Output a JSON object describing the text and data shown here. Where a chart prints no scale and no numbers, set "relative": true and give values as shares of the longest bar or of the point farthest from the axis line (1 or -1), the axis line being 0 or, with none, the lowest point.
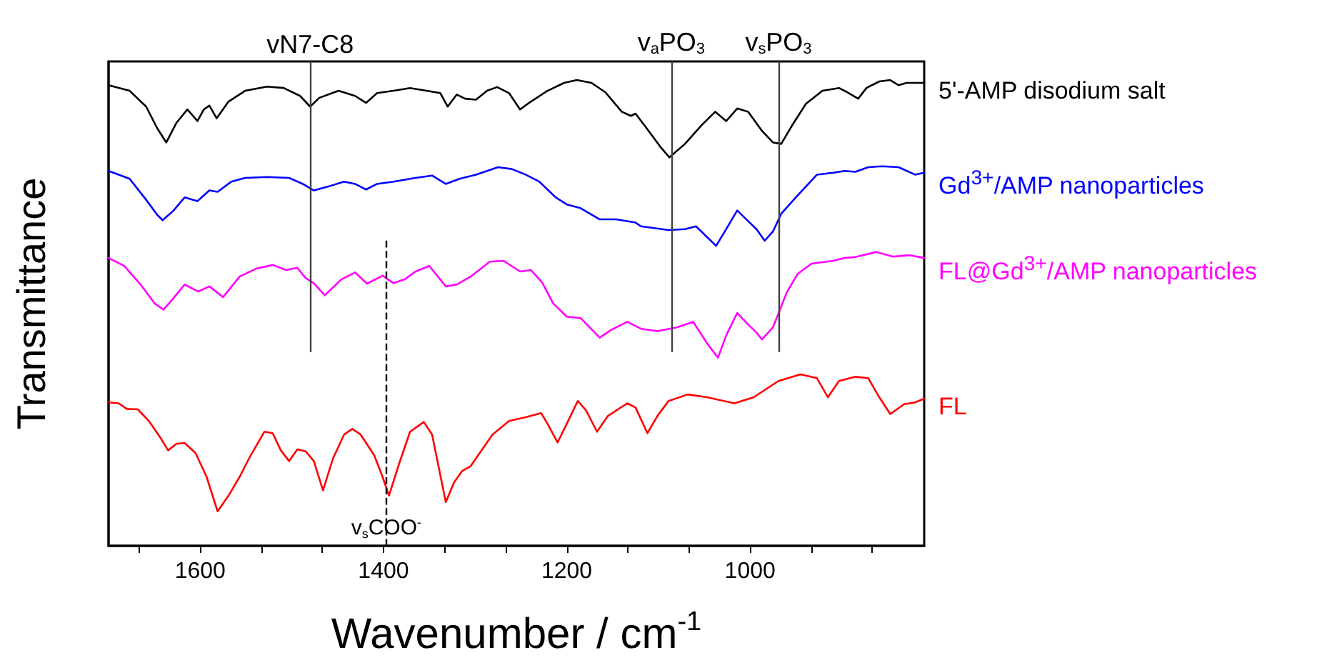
{
  "chart_data": {
    "type": "line",
    "relative": true,
    "xlabel": "Wavenumber / cm$^{-1}$",
    "ylabel": "Transmittance",
    "marker": "none",
    "xlim": [
      1700,
      810
    ],
    "xticks": [
      {
        "value": 1666.67,
        "label": null
      },
      1600,
      {
        "value": 1533.33,
        "label": null
      },
      {
        "value": 1466.67,
        "label": null
      },
      1400,
      {
        "value": 1333.33,
        "label": null
      },
      {
        "value": 1266.67,
        "label": null
      },
      1200,
      {
        "value": 1133.33,
        "label": null
      },
      {
        "value": 1066.67,
        "label": null
      },
      1000,
      {
        "value": 933.33,
        "label": null
      },
      {
        "value": 866.67,
        "label": null
      }
    ],
    "series": [
      {
        "name": "5'-AMP disodium salt",
        "color": "#000000",
        "x": [
          1700,
          1677,
          1659,
          1647,
          1637,
          1626,
          1614,
          1603,
          1596,
          1590,
          1582,
          1569,
          1551,
          1527,
          1509,
          1491,
          1480,
          1470,
          1449,
          1431,
          1419,
          1407,
          1389,
          1371,
          1353,
          1338,
          1330,
          1320,
          1311,
          1299,
          1287,
          1276,
          1263,
          1251,
          1239,
          1221,
          1203,
          1189,
          1173,
          1158,
          1140,
          1130,
          1125,
          1113,
          1098,
          1088,
          1071,
          1053,
          1038,
          1026,
          1014,
          1002,
          987,
          975,
          966,
          954,
          939,
          921,
          903,
          894,
          882,
          873,
          859,
          847,
          838,
          829,
          810
        ],
        "values": [
          0.989,
          0.977,
          0.943,
          0.897,
          0.866,
          0.908,
          0.937,
          0.912,
          0.937,
          0.945,
          0.918,
          0.954,
          0.977,
          0.986,
          0.983,
          0.966,
          0.943,
          0.962,
          0.977,
          0.966,
          0.951,
          0.972,
          0.977,
          0.983,
          0.977,
          0.972,
          0.943,
          0.969,
          0.96,
          0.958,
          0.977,
          0.985,
          0.972,
          0.937,
          0.954,
          0.977,
          0.994,
          1,
          0.994,
          0.974,
          0.932,
          0.923,
          0.928,
          0.897,
          0.857,
          0.834,
          0.863,
          0.903,
          0.932,
          0.912,
          0.939,
          0.932,
          0.891,
          0.866,
          0.863,
          0.903,
          0.949,
          0.977,
          0.983,
          0.974,
          0.96,
          0.983,
          0.997,
          1,
          0.989,
          0.994,
          0.994
        ]
      },
      {
        "name": "Gd$^{3+}$/AMP nanoparticles",
        "color": "#0000ff",
        "x": [
          1700,
          1677,
          1659,
          1647,
          1641,
          1629,
          1617,
          1603,
          1590,
          1581,
          1566,
          1551,
          1527,
          1503,
          1488,
          1476,
          1461,
          1443,
          1431,
          1419,
          1407,
          1389,
          1365,
          1347,
          1332,
          1317,
          1299,
          1275,
          1260,
          1245,
          1230,
          1212,
          1200,
          1185,
          1164,
          1146,
          1125,
          1119,
          1089,
          1071,
          1059,
          1047,
          1037,
          1026,
          1014,
          1002,
          993,
          984,
          975,
          966,
          951,
          927,
          909,
          897,
          885,
          871,
          856,
          838,
          820,
          810
        ],
        "values": [
          0.805,
          0.788,
          0.743,
          0.711,
          0.699,
          0.72,
          0.748,
          0.74,
          0.763,
          0.76,
          0.782,
          0.79,
          0.792,
          0.79,
          0.777,
          0.763,
          0.771,
          0.782,
          0.777,
          0.765,
          0.777,
          0.782,
          0.79,
          0.795,
          0.777,
          0.788,
          0.797,
          0.813,
          0.809,
          0.797,
          0.782,
          0.748,
          0.733,
          0.725,
          0.701,
          0.701,
          0.694,
          0.686,
          0.678,
          0.68,
          0.686,
          0.663,
          0.644,
          0.68,
          0.72,
          0.697,
          0.68,
          0.655,
          0.675,
          0.713,
          0.746,
          0.797,
          0.801,
          0.805,
          0.803,
          0.813,
          0.815,
          0.813,
          0.797,
          0.801
        ]
      },
      {
        "name": "FL@Gd$^{3+}$/AMP nanoparticles",
        "color": "#ff00ff",
        "x": [
          1700,
          1683,
          1665,
          1650,
          1640,
          1629,
          1617,
          1602,
          1590,
          1575,
          1557,
          1539,
          1521,
          1506,
          1494,
          1485,
          1476,
          1464,
          1446,
          1431,
          1418,
          1401,
          1389,
          1377,
          1365,
          1350,
          1332,
          1320,
          1305,
          1284,
          1269,
          1251,
          1239,
          1227,
          1215,
          1200,
          1185,
          1164,
          1152,
          1134,
          1119,
          1101,
          1080,
          1062,
          1047,
          1035,
          1026,
          1014,
          1002,
          993,
          987,
          975,
          960,
          948,
          933,
          909,
          897,
          885,
          862,
          844,
          826,
          810
        ],
        "values": [
          0.618,
          0.601,
          0.561,
          0.521,
          0.507,
          0.532,
          0.561,
          0.546,
          0.557,
          0.534,
          0.578,
          0.595,
          0.603,
          0.592,
          0.597,
          0.575,
          0.564,
          0.538,
          0.572,
          0.587,
          0.563,
          0.58,
          0.564,
          0.572,
          0.589,
          0.601,
          0.557,
          0.561,
          0.578,
          0.61,
          0.612,
          0.589,
          0.592,
          0.566,
          0.521,
          0.492,
          0.489,
          0.447,
          0.463,
          0.481,
          0.466,
          0.461,
          0.469,
          0.481,
          0.435,
          0.404,
          0.452,
          0.5,
          0.475,
          0.458,
          0.443,
          0.469,
          0.544,
          0.584,
          0.606,
          0.612,
          0.618,
          0.62,
          0.631,
          0.621,
          0.624,
          0.618
        ]
      },
      {
        "name": "FL",
        "color": "#ff0000",
        "x": [
          1700,
          1689,
          1680,
          1668,
          1656,
          1644,
          1635,
          1626,
          1617,
          1605,
          1593,
          1581,
          1569,
          1557,
          1545,
          1530,
          1521,
          1512,
          1503,
          1494,
          1485,
          1476,
          1466,
          1455,
          1443,
          1434,
          1425,
          1410,
          1401,
          1394,
          1383,
          1371,
          1356,
          1347,
          1332,
          1323,
          1314,
          1305,
          1281,
          1263,
          1245,
          1228,
          1221,
          1210,
          1200,
          1188,
          1179,
          1167,
          1155,
          1134,
          1125,
          1112,
          1101,
          1089,
          1068,
          1047,
          1017,
          996,
          969,
          945,
          927,
          915,
          903,
          885,
          871,
          859,
          847,
          832,
          820,
          810
        ],
        "values": [
          0.308,
          0.306,
          0.294,
          0.293,
          0.268,
          0.234,
          0.205,
          0.219,
          0.221,
          0.199,
          0.148,
          0.074,
          0.108,
          0.148,
          0.194,
          0.245,
          0.242,
          0.205,
          0.182,
          0.207,
          0.203,
          0.182,
          0.119,
          0.188,
          0.239,
          0.251,
          0.239,
          0.194,
          0.148,
          0.108,
          0.176,
          0.245,
          0.266,
          0.239,
          0.094,
          0.136,
          0.161,
          0.171,
          0.239,
          0.268,
          0.276,
          0.285,
          0.262,
          0.222,
          0.262,
          0.311,
          0.291,
          0.245,
          0.279,
          0.306,
          0.297,
          0.242,
          0.279,
          0.311,
          0.325,
          0.319,
          0.306,
          0.319,
          0.354,
          0.368,
          0.36,
          0.319,
          0.354,
          0.363,
          0.36,
          0.319,
          0.283,
          0.304,
          0.308,
          0.316
        ]
      }
    ],
    "ref_lines": [
      {
        "axis": "x",
        "value": 1480,
        "label": "vN7-C8",
        "color": "#404040",
        "line_style": "solid"
      },
      {
        "axis": "x",
        "value": 1086,
        "label": "v$_{a}$PO$_{3}$",
        "color": "#404040",
        "line_style": "solid"
      },
      {
        "axis": "x",
        "value": 969,
        "label": "v$_{s}$PO$_{3}$",
        "color": "#404040",
        "line_style": "solid"
      },
      {
        "axis": "x",
        "value": 1397,
        "label": "v$_{s}$COO$^{-}$",
        "color": "#000000",
        "line_style": "dashed"
      }
    ]
  }
}
